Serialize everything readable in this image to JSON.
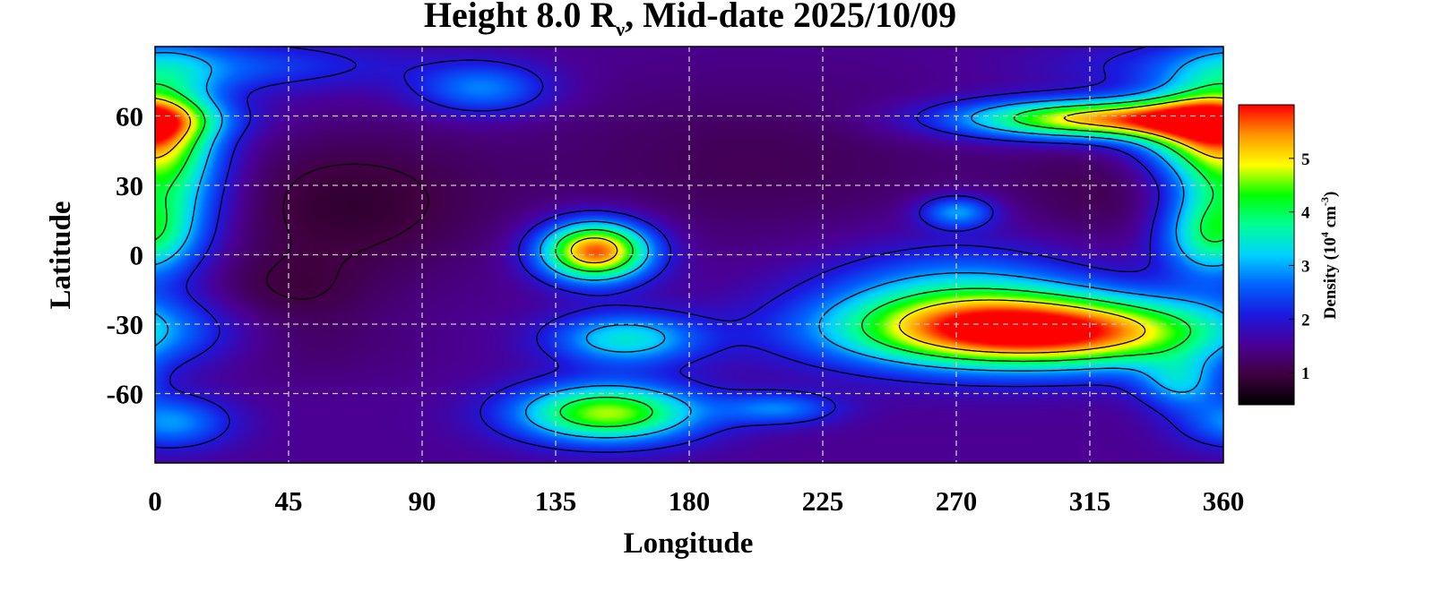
{
  "chart_data": {
    "type": "heatmap",
    "title": {
      "prefix": "Height 8.0 R",
      "subscript": "ν",
      "suffix": ", Mid-date 2025/10/09"
    },
    "xlabel": "Longitude",
    "ylabel": "Latitude",
    "xlim": [
      0,
      360
    ],
    "ylim": [
      -90,
      90
    ],
    "x_ticks": [
      0,
      45,
      90,
      135,
      180,
      225,
      270,
      315,
      360
    ],
    "y_ticks": [
      60,
      30,
      0,
      -30,
      -60
    ],
    "x_tick_labels": [
      "0",
      "45",
      "90",
      "135",
      "180",
      "225",
      "270",
      "315",
      "360"
    ],
    "y_tick_labels": [
      "60",
      "30",
      "0",
      "-30",
      "-60"
    ],
    "grid": true,
    "colorbar": {
      "label_prefix": "Density (10",
      "label_sup1": "4",
      "label_mid": " cm",
      "label_sup2": "-3",
      "label_suffix": ")",
      "range": [
        0.4,
        6.0
      ],
      "ticks": [
        1,
        2,
        3,
        4,
        5
      ],
      "tick_labels": [
        "1",
        "2",
        "3",
        "4",
        "5"
      ],
      "colormap": [
        "#000000",
        "#400040",
        "#4b0096",
        "#1a1ae0",
        "#0064ff",
        "#00d2ff",
        "#00ff96",
        "#00ff00",
        "#ffff00",
        "#ff9600",
        "#ff0000"
      ]
    },
    "background_level": 1.5,
    "features": [
      {
        "lon": 65,
        "lat": 22,
        "slon": 32,
        "slat": 22,
        "amp": -0.65
      },
      {
        "lon": 42,
        "lat": -18,
        "slon": 22,
        "slat": 13,
        "amp": -0.5
      },
      {
        "lon": 200,
        "lat": 40,
        "slon": 55,
        "slat": 25,
        "amp": -0.4
      },
      {
        "lon": 320,
        "lat": 28,
        "slon": 22,
        "slat": 18,
        "amp": -0.4
      },
      {
        "lon": 40,
        "lat": -40,
        "slon": 30,
        "slat": 10,
        "amp": -0.3
      },
      {
        "lon": 300,
        "lat": -33,
        "slon": 45,
        "slat": 11,
        "amp": 4.4
      },
      {
        "lon": 270,
        "lat": -20,
        "slon": 32,
        "slat": 16,
        "amp": 1.7
      },
      {
        "lon": 148,
        "lat": 2,
        "slon": 13,
        "slat": 9,
        "amp": 4.3
      },
      {
        "lon": 152,
        "lat": -68,
        "slon": 22,
        "slat": 9,
        "amp": 3.2
      },
      {
        "lon": 158,
        "lat": -36,
        "slon": 18,
        "slat": 8,
        "amp": 1.9
      },
      {
        "lon": 318,
        "lat": 59,
        "slon": 33,
        "slat": 6,
        "amp": 3.8
      },
      {
        "lon": 350,
        "lat": 55,
        "slon": 16,
        "slat": 12,
        "amp": 2.2
      },
      {
        "lon": 2,
        "lat": 42,
        "slon": 14,
        "slat": 28,
        "amp": 2.6
      },
      {
        "lon": 110,
        "lat": 72,
        "slon": 16,
        "slat": 8,
        "amp": 1.3
      },
      {
        "lon": 15,
        "lat": 82,
        "slon": 45,
        "slat": 8,
        "amp": 1.0
      },
      {
        "lon": 5,
        "lat": -72,
        "slon": 14,
        "slat": 8,
        "amp": 1.4
      },
      {
        "lon": 210,
        "lat": -66,
        "slon": 14,
        "slat": 5,
        "amp": 1.2
      },
      {
        "lon": 270,
        "lat": 19,
        "slon": 9,
        "slat": 5,
        "amp": 1.5
      },
      {
        "lon": 355,
        "lat": 8,
        "slon": 12,
        "slat": 12,
        "amp": 1.6
      },
      {
        "lon": 345,
        "lat": -55,
        "slon": 10,
        "slat": 8,
        "amp": 1.4
      }
    ],
    "contour_levels": [
      1,
      2,
      3,
      4,
      5
    ]
  }
}
